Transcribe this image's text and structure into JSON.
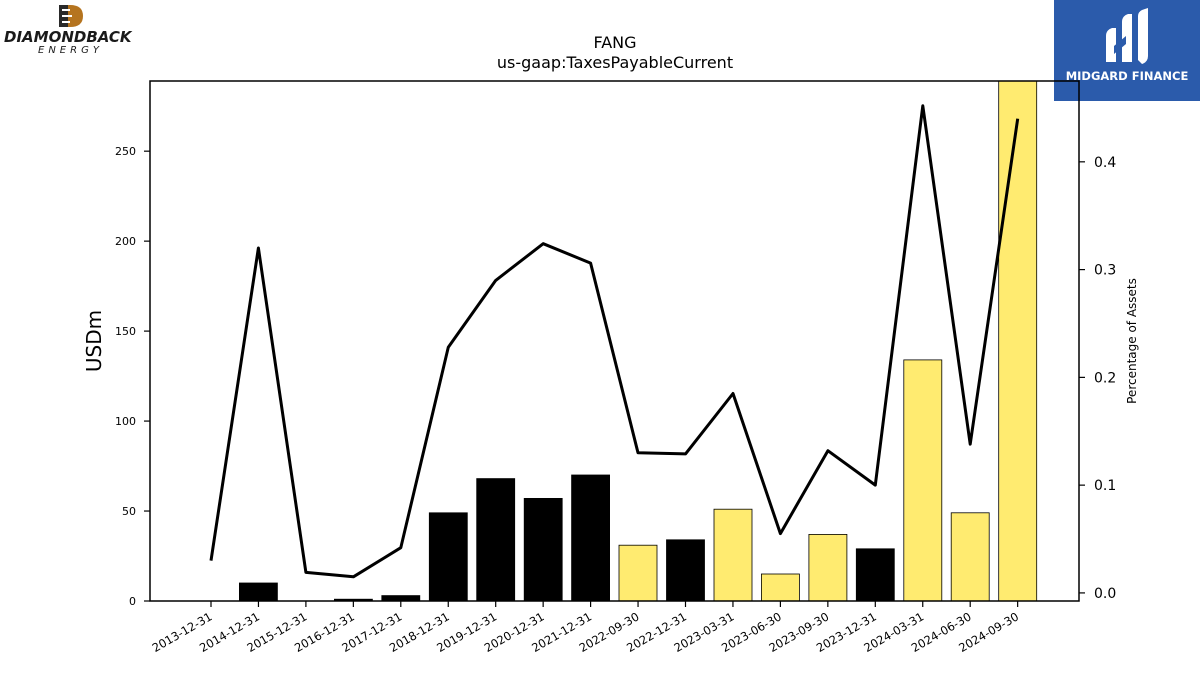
{
  "logos": {
    "left_brand": "DIAMONDBACK",
    "left_sub": "ENERGY",
    "right_brand": "MIDGARD FINANCE"
  },
  "chart_data": {
    "type": "bar",
    "title": "FANG",
    "subtitle": "us-gaap:TaxesPayableCurrent",
    "ylabel": "USDm",
    "y2label": "Percentage of Assets",
    "ylim": [
      0,
      289
    ],
    "y2lim": [
      -0.0075,
      0.475
    ],
    "yticks": [
      0,
      50,
      100,
      150,
      200,
      250
    ],
    "y2ticks": [
      0.0,
      0.1,
      0.2,
      0.3,
      0.4
    ],
    "categories": [
      "2013-12-31",
      "2014-12-31",
      "2015-12-31",
      "2016-12-31",
      "2017-12-31",
      "2018-12-31",
      "2019-12-31",
      "2020-12-31",
      "2021-12-31",
      "2022-09-30",
      "2022-12-31",
      "2023-03-31",
      "2023-06-30",
      "2023-09-30",
      "2023-12-31",
      "2024-03-31",
      "2024-06-30",
      "2024-09-30"
    ],
    "series": [
      {
        "kind": "bar",
        "values": [
          0,
          10,
          0,
          1,
          3,
          49,
          68,
          57,
          70,
          31,
          34,
          51,
          15,
          37,
          29,
          134,
          49,
          289
        ],
        "colors": [
          "#000000",
          "#000000",
          "#000000",
          "#000000",
          "#000000",
          "#000000",
          "#000000",
          "#000000",
          "#000000",
          "#ffeb70",
          "#000000",
          "#ffeb70",
          "#ffeb70",
          "#ffeb70",
          "#000000",
          "#ffeb70",
          "#ffeb70",
          "#ffeb70"
        ]
      },
      {
        "kind": "line",
        "axis": "right",
        "color": "#000000",
        "values": [
          0.03,
          0.32,
          0.019,
          0.015,
          0.042,
          0.228,
          0.29,
          0.324,
          0.306,
          0.13,
          0.129,
          0.185,
          0.055,
          0.132,
          0.1,
          0.452,
          0.138,
          0.44
        ]
      }
    ],
    "grid": false
  }
}
